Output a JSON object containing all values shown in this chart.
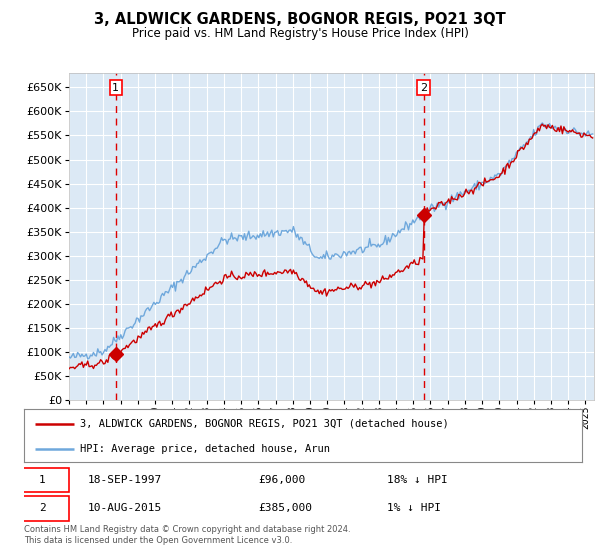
{
  "title": "3, ALDWICK GARDENS, BOGNOR REGIS, PO21 3QT",
  "subtitle": "Price paid vs. HM Land Registry's House Price Index (HPI)",
  "ylim": [
    0,
    680000
  ],
  "yticks": [
    0,
    50000,
    100000,
    150000,
    200000,
    250000,
    300000,
    350000,
    400000,
    450000,
    500000,
    550000,
    600000,
    650000
  ],
  "xlim_start": 1995.0,
  "xlim_end": 2025.5,
  "bg_color": "#dce9f5",
  "grid_color": "#ffffff",
  "hpi_color": "#6fa8dc",
  "price_color": "#cc0000",
  "sale1_date": 1997.72,
  "sale1_price": 96000,
  "sale2_date": 2015.61,
  "sale2_price": 385000,
  "legend1": "3, ALDWICK GARDENS, BOGNOR REGIS, PO21 3QT (detached house)",
  "legend2": "HPI: Average price, detached house, Arun",
  "note1_date": "18-SEP-1997",
  "note1_price": "£96,000",
  "note1_hpi": "18% ↓ HPI",
  "note2_date": "10-AUG-2015",
  "note2_price": "£385,000",
  "note2_hpi": "1% ↓ HPI",
  "footer": "Contains HM Land Registry data © Crown copyright and database right 2024.\nThis data is licensed under the Open Government Licence v3.0."
}
